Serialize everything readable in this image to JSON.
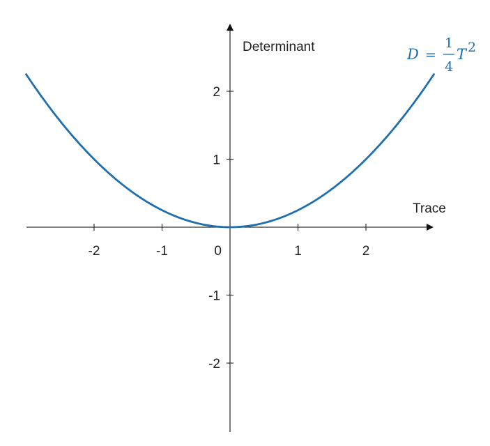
{
  "chart_data": {
    "type": "line",
    "xlabel": "Trace",
    "ylabel": "Determinant",
    "xlim": [
      -3,
      3
    ],
    "ylim": [
      -3,
      3
    ],
    "x_ticks": [
      -2,
      -1,
      0,
      1,
      2
    ],
    "y_ticks": [
      2,
      1,
      -1,
      -2
    ],
    "grid": false,
    "series": [
      {
        "function": "D = T^2 / 4",
        "color": "#1f6fb0",
        "x": [
          -3,
          -2.5,
          -2,
          -1.5,
          -1,
          -0.5,
          0,
          0.5,
          1,
          1.5,
          2,
          2.5,
          3
        ],
        "y": [
          2.25,
          1.5625,
          1,
          0.5625,
          0.25,
          0.0625,
          0,
          0.0625,
          0.25,
          0.5625,
          1,
          1.5625,
          2.25
        ]
      }
    ],
    "annotation": {
      "lhs": "D",
      "equals": "=",
      "numerator": "1",
      "denominator": "4",
      "variable": "T",
      "exponent": "2",
      "color": "#1f6fb0"
    }
  }
}
